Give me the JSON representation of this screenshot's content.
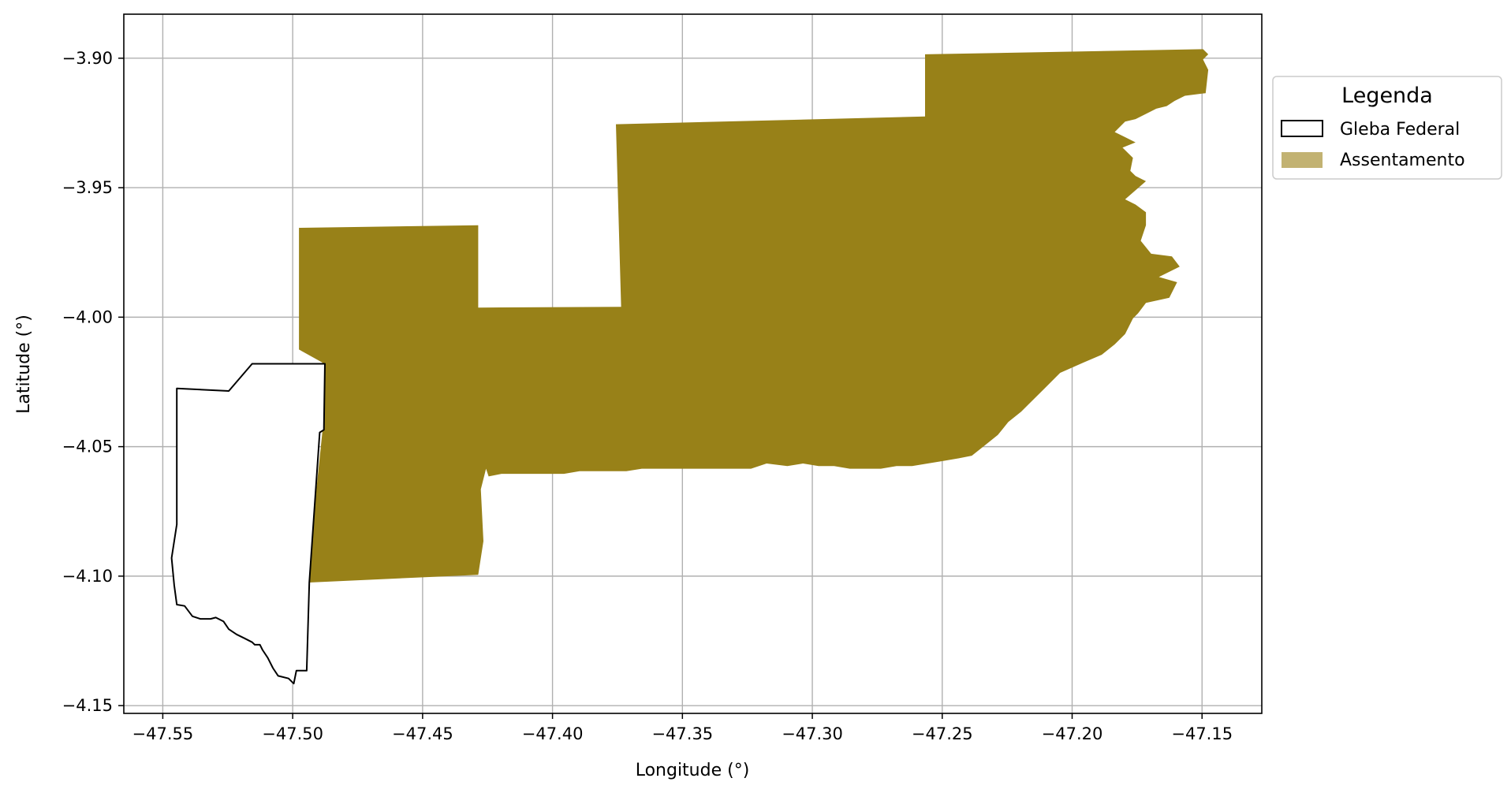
{
  "map": {
    "xlabel": "Longitude (°)",
    "ylabel": "Latitude (°)",
    "xlim": [
      -47.565,
      -47.127
    ],
    "ylim": [
      -4.153,
      -3.883
    ],
    "x_ticks": [
      -47.55,
      -47.5,
      -47.45,
      -47.4,
      -47.35,
      -47.3,
      -47.25,
      -47.2,
      -47.15
    ],
    "y_ticks": [
      -3.9,
      -3.95,
      -4.0,
      -4.05,
      -4.1,
      -4.15
    ],
    "x_tick_labels": [
      "−47.55",
      "−47.50",
      "−47.45",
      "−47.40",
      "−47.35",
      "−47.30",
      "−47.25",
      "−47.20",
      "−47.15"
    ],
    "y_tick_labels": [
      "−3.90",
      "−3.95",
      "−4.00",
      "−4.05",
      "−4.10",
      "−4.15"
    ],
    "grid": true,
    "colors": {
      "assentamento_fill": "#988118",
      "assentamento_legend": "#c2b272",
      "gleba_edge": "#000000",
      "gleba_fill": "#ffffff",
      "grid": "#b0b0b0"
    },
    "legend": {
      "title": "Legenda",
      "placement": "outside-upper-right",
      "entries": [
        {
          "label": "Gleba Federal",
          "key": "gleba"
        },
        {
          "label": "Assentamento",
          "key": "assentamento"
        }
      ]
    },
    "layers": {
      "assentamento": {
        "name": "Assentamento",
        "polygon": [
          [
            -47.4976,
            -3.9655
          ],
          [
            -47.4286,
            -3.9645
          ],
          [
            -47.4286,
            -3.9963
          ],
          [
            -47.3736,
            -3.996
          ],
          [
            -47.3756,
            -3.9255
          ],
          [
            -47.2566,
            -3.9225
          ],
          [
            -47.2566,
            -3.8985
          ],
          [
            -47.1496,
            -3.8965
          ],
          [
            -47.1476,
            -3.8985
          ],
          [
            -47.1496,
            -3.9005
          ],
          [
            -47.1476,
            -3.9045
          ],
          [
            -47.1486,
            -3.9135
          ],
          [
            -47.1566,
            -3.9145
          ],
          [
            -47.1606,
            -3.9165
          ],
          [
            -47.1636,
            -3.9185
          ],
          [
            -47.1676,
            -3.9195
          ],
          [
            -47.1716,
            -3.9215
          ],
          [
            -47.1756,
            -3.9235
          ],
          [
            -47.1796,
            -3.9245
          ],
          [
            -47.1836,
            -3.9285
          ],
          [
            -47.1796,
            -3.9305
          ],
          [
            -47.1756,
            -3.9325
          ],
          [
            -47.1806,
            -3.9345
          ],
          [
            -47.1766,
            -3.9385
          ],
          [
            -47.1776,
            -3.9435
          ],
          [
            -47.1756,
            -3.9455
          ],
          [
            -47.1716,
            -3.9475
          ],
          [
            -47.1796,
            -3.9545
          ],
          [
            -47.1756,
            -3.9565
          ],
          [
            -47.1716,
            -3.9595
          ],
          [
            -47.1716,
            -3.9645
          ],
          [
            -47.1736,
            -3.9705
          ],
          [
            -47.1696,
            -3.9755
          ],
          [
            -47.1616,
            -3.9765
          ],
          [
            -47.1586,
            -3.9805
          ],
          [
            -47.1666,
            -3.9845
          ],
          [
            -47.1596,
            -3.9865
          ],
          [
            -47.1626,
            -3.9925
          ],
          [
            -47.1716,
            -3.9945
          ],
          [
            -47.1746,
            -3.9985
          ],
          [
            -47.1766,
            -4.0005
          ],
          [
            -47.1796,
            -4.0065
          ],
          [
            -47.1836,
            -4.0105
          ],
          [
            -47.1886,
            -4.0145
          ],
          [
            -47.1956,
            -4.0175
          ],
          [
            -47.2046,
            -4.0215
          ],
          [
            -47.2106,
            -4.0275
          ],
          [
            -47.2166,
            -4.0335
          ],
          [
            -47.2196,
            -4.0365
          ],
          [
            -47.2246,
            -4.0405
          ],
          [
            -47.2286,
            -4.0455
          ],
          [
            -47.2336,
            -4.0495
          ],
          [
            -47.2386,
            -4.0535
          ],
          [
            -47.2436,
            -4.0545
          ],
          [
            -47.2496,
            -4.0555
          ],
          [
            -47.2556,
            -4.0565
          ],
          [
            -47.2616,
            -4.0575
          ],
          [
            -47.2676,
            -4.0575
          ],
          [
            -47.2736,
            -4.0585
          ],
          [
            -47.2796,
            -4.0585
          ],
          [
            -47.2856,
            -4.0585
          ],
          [
            -47.2916,
            -4.0575
          ],
          [
            -47.2976,
            -4.0575
          ],
          [
            -47.3036,
            -4.0565
          ],
          [
            -47.3096,
            -4.0575
          ],
          [
            -47.3176,
            -4.0565
          ],
          [
            -47.3236,
            -4.0585
          ],
          [
            -47.3316,
            -4.0585
          ],
          [
            -47.3396,
            -4.0585
          ],
          [
            -47.3456,
            -4.0585
          ],
          [
            -47.3536,
            -4.0585
          ],
          [
            -47.3596,
            -4.0585
          ],
          [
            -47.3656,
            -4.0585
          ],
          [
            -47.3716,
            -4.0595
          ],
          [
            -47.3776,
            -4.0595
          ],
          [
            -47.3836,
            -4.0595
          ],
          [
            -47.3896,
            -4.0595
          ],
          [
            -47.3956,
            -4.0605
          ],
          [
            -47.4016,
            -4.0605
          ],
          [
            -47.4076,
            -4.0605
          ],
          [
            -47.4136,
            -4.0605
          ],
          [
            -47.4196,
            -4.0605
          ],
          [
            -47.4246,
            -4.0615
          ],
          [
            -47.4256,
            -4.0585
          ],
          [
            -47.4276,
            -4.0665
          ],
          [
            -47.4266,
            -4.0865
          ],
          [
            -47.4286,
            -4.0995
          ],
          [
            -47.4946,
            -4.1025
          ],
          [
            -47.4886,
            -4.0445
          ],
          [
            -47.4886,
            -4.0175
          ],
          [
            -47.4976,
            -4.0125
          ],
          [
            -47.4976,
            -3.9655
          ]
        ]
      },
      "gleba": {
        "name": "Gleba Federal",
        "polygon": [
          [
            -47.5446,
            -4.0275
          ],
          [
            -47.5246,
            -4.0285
          ],
          [
            -47.5156,
            -4.018
          ],
          [
            -47.4876,
            -4.018
          ],
          [
            -47.488,
            -4.0435
          ],
          [
            -47.4896,
            -4.0445
          ],
          [
            -47.4936,
            -4.1025
          ],
          [
            -47.4946,
            -4.1365
          ],
          [
            -47.4986,
            -4.1365
          ],
          [
            -47.4996,
            -4.1415
          ],
          [
            -47.5016,
            -4.1395
          ],
          [
            -47.5056,
            -4.1385
          ],
          [
            -47.5076,
            -4.1355
          ],
          [
            -47.5096,
            -4.1315
          ],
          [
            -47.5116,
            -4.1285
          ],
          [
            -47.5126,
            -4.1265
          ],
          [
            -47.5146,
            -4.1265
          ],
          [
            -47.5156,
            -4.1255
          ],
          [
            -47.5186,
            -4.124
          ],
          [
            -47.5216,
            -4.1225
          ],
          [
            -47.5246,
            -4.1205
          ],
          [
            -47.5266,
            -4.1175
          ],
          [
            -47.5296,
            -4.116
          ],
          [
            -47.5316,
            -4.1165
          ],
          [
            -47.5356,
            -4.1165
          ],
          [
            -47.5386,
            -4.1155
          ],
          [
            -47.5416,
            -4.1115
          ],
          [
            -47.5446,
            -4.111
          ],
          [
            -47.5456,
            -4.1035
          ],
          [
            -47.5466,
            -4.093
          ],
          [
            -47.5446,
            -4.08
          ],
          [
            -47.5446,
            -4.074
          ],
          [
            -47.5446,
            -4.0275
          ]
        ]
      }
    }
  }
}
